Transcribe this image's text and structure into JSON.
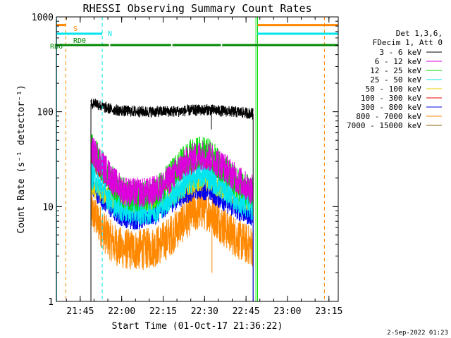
{
  "chart_data": {
    "type": "line",
    "title": "RHESSI Observing Summary Count Rates",
    "xlabel": "Start Time (01-Oct-17 21:36:22)",
    "ylabel": "Count Rate (s⁻¹ detector⁻¹)",
    "x_unit": "minutes after 21:36:22 UT",
    "xlim": [
      0,
      102
    ],
    "ylim": [
      1,
      1000
    ],
    "yscale": "log",
    "grid": false,
    "x_ticks": [
      {
        "value": 8.63,
        "label": "21:45"
      },
      {
        "value": 23.63,
        "label": "22:00"
      },
      {
        "value": 38.63,
        "label": "22:15"
      },
      {
        "value": 53.63,
        "label": "22:30"
      },
      {
        "value": 68.63,
        "label": "22:45"
      },
      {
        "value": 83.63,
        "label": "23:00"
      },
      {
        "value": 98.63,
        "label": "23:15"
      }
    ],
    "y_ticks": [
      {
        "value": 1,
        "label": "1"
      },
      {
        "value": 10,
        "label": "10"
      },
      {
        "value": 100,
        "label": "100"
      },
      {
        "value": 1000,
        "label": "1000"
      }
    ],
    "legend": {
      "placement": "right",
      "header": [
        "Det 1,3,6,",
        "FDecim 1, Att 0"
      ],
      "entries": [
        {
          "label": "3 - 6 keV",
          "color": "#000000"
        },
        {
          "label": "6 - 12 keV",
          "color": "#dd00dd"
        },
        {
          "label": "12 - 25 keV",
          "color": "#00dd00"
        },
        {
          "label": "25 - 50 keV",
          "color": "#00e5ee"
        },
        {
          "label": "50 - 100 keV",
          "color": "#e6d200"
        },
        {
          "label": "100 - 300 keV",
          "color": "#ee0000"
        },
        {
          "label": "300 - 800 keV",
          "color": "#0000ee"
        },
        {
          "label": "800 - 7000 keV",
          "color": "#ff8800"
        },
        {
          "label": "7000 - 15000 keV",
          "color": "#886600"
        }
      ]
    },
    "series": [
      {
        "name": "3 - 6 keV",
        "color": "#000000",
        "noise": 0.06,
        "points": [
          [
            12.5,
            120
          ],
          [
            14,
            125
          ],
          [
            17,
            112
          ],
          [
            20,
            106
          ],
          [
            24,
            102
          ],
          [
            28,
            101
          ],
          [
            32,
            100
          ],
          [
            36,
            100
          ],
          [
            40,
            101
          ],
          [
            44,
            101
          ],
          [
            48,
            103
          ],
          [
            52,
            104
          ],
          [
            55,
            105
          ],
          [
            58,
            103
          ],
          [
            62,
            101
          ],
          [
            66,
            99
          ],
          [
            69,
            97
          ],
          [
            71.2,
            95
          ]
        ]
      },
      {
        "name": "6 - 12 keV",
        "color": "#dd00dd",
        "noise": 0.16,
        "points": [
          [
            12.5,
            40
          ],
          [
            15,
            33
          ],
          [
            18,
            24
          ],
          [
            21,
            18
          ],
          [
            24,
            15
          ],
          [
            27,
            14
          ],
          [
            30,
            14
          ],
          [
            33,
            14
          ],
          [
            36,
            15
          ],
          [
            39,
            17
          ],
          [
            42,
            21
          ],
          [
            45,
            26
          ],
          [
            48,
            31
          ],
          [
            51,
            34
          ],
          [
            53,
            35
          ],
          [
            55,
            34
          ],
          [
            58,
            30
          ],
          [
            61,
            26
          ],
          [
            64,
            21
          ],
          [
            67,
            18
          ],
          [
            69,
            16
          ],
          [
            71.2,
            15
          ]
        ]
      },
      {
        "name": "12 - 25 keV",
        "color": "#00dd00",
        "noise": 0.17,
        "points": [
          [
            12.5,
            42
          ],
          [
            15,
            33
          ],
          [
            18,
            23
          ],
          [
            21,
            17
          ],
          [
            24,
            14
          ],
          [
            27,
            13
          ],
          [
            30,
            13
          ],
          [
            33,
            13
          ],
          [
            36,
            14
          ],
          [
            39,
            17
          ],
          [
            42,
            22
          ],
          [
            45,
            28
          ],
          [
            48,
            34
          ],
          [
            51,
            37
          ],
          [
            53,
            38
          ],
          [
            55,
            36
          ],
          [
            58,
            30
          ],
          [
            61,
            24
          ],
          [
            64,
            19
          ],
          [
            67,
            16
          ],
          [
            69,
            15
          ],
          [
            71.2,
            14
          ]
        ]
      },
      {
        "name": "25 - 50 keV",
        "color": "#00e5ee",
        "noise": 0.15,
        "points": [
          [
            12.5,
            22
          ],
          [
            15,
            18
          ],
          [
            18,
            13.5
          ],
          [
            21,
            11
          ],
          [
            24,
            9.5
          ],
          [
            27,
            9
          ],
          [
            30,
            9
          ],
          [
            33,
            9
          ],
          [
            36,
            9.5
          ],
          [
            39,
            11
          ],
          [
            42,
            13
          ],
          [
            45,
            16
          ],
          [
            48,
            19
          ],
          [
            51,
            21
          ],
          [
            53,
            22
          ],
          [
            55,
            21
          ],
          [
            58,
            18
          ],
          [
            61,
            15
          ],
          [
            64,
            13
          ],
          [
            67,
            11
          ],
          [
            69,
            10.5
          ],
          [
            71.2,
            10
          ]
        ]
      },
      {
        "name": "50 - 100 keV",
        "color": "#e6d200",
        "noise": 0.1,
        "points": [
          [
            12.5,
            16
          ],
          [
            16,
            14
          ],
          [
            20,
            12
          ],
          [
            24,
            11
          ],
          [
            28,
            10.5
          ],
          [
            32,
            10.5
          ],
          [
            36,
            11
          ],
          [
            40,
            12
          ],
          [
            44,
            14
          ],
          [
            48,
            16
          ],
          [
            52,
            18
          ],
          [
            55,
            18
          ],
          [
            58,
            16
          ],
          [
            62,
            14
          ],
          [
            66,
            12
          ],
          [
            69,
            11.5
          ],
          [
            71.2,
            11
          ]
        ]
      },
      {
        "name": "100 - 300 keV",
        "color": "#ee0000",
        "noise": 0.08,
        "points": [
          [
            12.5,
            30
          ],
          [
            15,
            25
          ],
          [
            18,
            19
          ],
          [
            21,
            15
          ],
          [
            24,
            13
          ],
          [
            27,
            12.5
          ],
          [
            30,
            12.5
          ],
          [
            33,
            13
          ],
          [
            36,
            14
          ],
          [
            39,
            16
          ],
          [
            42,
            19
          ],
          [
            45,
            22
          ],
          [
            48,
            25
          ],
          [
            51,
            27
          ],
          [
            53,
            27.5
          ],
          [
            55,
            26.5
          ],
          [
            58,
            23
          ],
          [
            61,
            20
          ],
          [
            64,
            17
          ],
          [
            67,
            15
          ],
          [
            69,
            14
          ],
          [
            71.2,
            13.5
          ]
        ]
      },
      {
        "name": "300 - 800 keV",
        "color": "#0000ee",
        "noise": 0.12,
        "points": [
          [
            12.5,
            17
          ],
          [
            15,
            14
          ],
          [
            18,
            11
          ],
          [
            21,
            9
          ],
          [
            24,
            8
          ],
          [
            27,
            7.5
          ],
          [
            30,
            7.5
          ],
          [
            33,
            8
          ],
          [
            36,
            8.5
          ],
          [
            39,
            10
          ],
          [
            42,
            11.5
          ],
          [
            45,
            13
          ],
          [
            48,
            14.5
          ],
          [
            51,
            15.5
          ],
          [
            53,
            15.5
          ],
          [
            55,
            15
          ],
          [
            58,
            13
          ],
          [
            61,
            11.5
          ],
          [
            64,
            10
          ],
          [
            67,
            9
          ],
          [
            69,
            8.5
          ],
          [
            71.2,
            8
          ]
        ]
      },
      {
        "name": "800 - 7000 keV",
        "color": "#ff8800",
        "noise": 0.22,
        "points": [
          [
            12.5,
            9
          ],
          [
            15,
            7
          ],
          [
            18,
            5
          ],
          [
            21,
            4
          ],
          [
            24,
            3.6
          ],
          [
            27,
            3.5
          ],
          [
            30,
            3.5
          ],
          [
            33,
            3.6
          ],
          [
            36,
            3.8
          ],
          [
            39,
            4.3
          ],
          [
            42,
            5.2
          ],
          [
            45,
            6.5
          ],
          [
            48,
            8
          ],
          [
            51,
            9
          ],
          [
            53,
            9.5
          ],
          [
            55,
            9
          ],
          [
            58,
            7.5
          ],
          [
            61,
            6
          ],
          [
            64,
            5
          ],
          [
            67,
            4.3
          ],
          [
            69,
            4
          ],
          [
            71.2,
            3.8
          ]
        ]
      }
    ],
    "annotations": {
      "vertical_lines": [
        {
          "x": 0.1,
          "color": "#00e5ee",
          "style": "solid"
        },
        {
          "x": 3.4,
          "color": "#ff8800",
          "style": "dashed"
        },
        {
          "x": 16.6,
          "color": "#00e5ee",
          "style": "dashed"
        },
        {
          "x": 72.2,
          "color": "#00dd00",
          "style": "solid"
        },
        {
          "x": 72.8,
          "color": "#00dd00",
          "style": "solid"
        },
        {
          "x": 97.0,
          "color": "#ff8800",
          "style": "dashed"
        }
      ],
      "flag_bars": [
        {
          "label": "S",
          "color": "#ff8800",
          "y": 820,
          "segments": [
            [
              0,
              3.4
            ],
            [
              72.8,
              102
            ]
          ]
        },
        {
          "label": "N",
          "color": "#00e5ee",
          "y": 665,
          "segments": [
            [
              0,
              16.6
            ],
            [
              72.8,
              102
            ]
          ]
        },
        {
          "label": "RD0",
          "color": "#008800",
          "y": 570,
          "segments": []
        },
        {
          "label": "RB6",
          "color": "#008800",
          "y": 505,
          "segments": [
            [
              0,
              19.0
            ],
            [
              19.5,
              41.5
            ],
            [
              42.0,
              59.5
            ],
            [
              60.0,
              102
            ]
          ]
        }
      ],
      "spikes": [
        {
          "x": 56.1,
          "y0": 65,
          "y1": 118,
          "color": "#000000"
        },
        {
          "x": 56.3,
          "y0": 2,
          "y1": 10,
          "color": "#ff8800"
        }
      ],
      "drop": {
        "x": 71.2,
        "to": 1,
        "color": "#0000ee"
      }
    },
    "footer_date": "2-Sep-2022 01:23"
  }
}
